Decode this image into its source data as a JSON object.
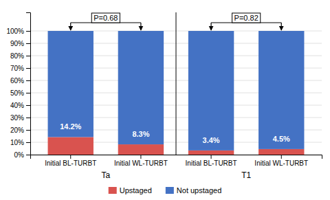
{
  "chart_data": {
    "type": "bar",
    "stacked": true,
    "categories": [
      "Initial BL-TURBT",
      "Initial WL-TURBT",
      "Initial BL-TURBT",
      "Initial WL-TURBT"
    ],
    "series": [
      {
        "name": "Upstaged",
        "color": "#d9534f",
        "values": [
          14.2,
          8.3,
          3.4,
          4.5
        ],
        "data_labels": true,
        "value_labels": [
          "14.2%",
          "8.3%",
          "3.4%",
          "4.5%"
        ]
      },
      {
        "name": "Not upstaged",
        "color": "#4472c4",
        "values": [
          85.8,
          91.7,
          96.6,
          95.5
        ]
      }
    ],
    "groups": [
      {
        "label": "Ta",
        "p_value": "P=0.68"
      },
      {
        "label": "T1",
        "p_value": "P=0.82"
      }
    ],
    "ylim": [
      0,
      115
    ],
    "yticks": [
      {
        "value": 0,
        "label": "0%"
      },
      {
        "value": 10,
        "label": "10%"
      },
      {
        "value": 20,
        "label": "20%"
      },
      {
        "value": 30,
        "label": "30%"
      },
      {
        "value": 40,
        "label": "40%"
      },
      {
        "value": 50,
        "label": "50%"
      },
      {
        "value": 60,
        "label": "60%"
      },
      {
        "value": 70,
        "label": "70%"
      },
      {
        "value": 80,
        "label": "80%"
      },
      {
        "value": 90,
        "label": "90%"
      },
      {
        "value": 100,
        "label": "100%"
      }
    ],
    "grid": true,
    "legend": "bottom"
  }
}
